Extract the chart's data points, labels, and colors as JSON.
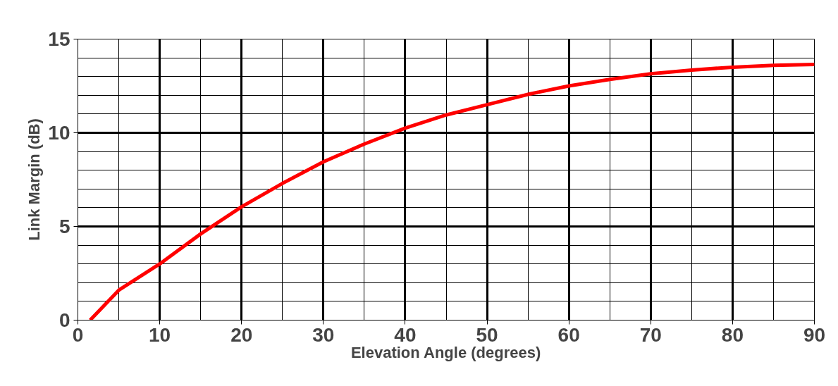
{
  "chart_data": {
    "type": "line",
    "xlabel": "Elevation Angle (degrees)",
    "ylabel": "Link Margin (dB)",
    "x": [
      1.5,
      5,
      10,
      15,
      20,
      25,
      30,
      35,
      40,
      45,
      50,
      55,
      60,
      65,
      70,
      75,
      80,
      85,
      90
    ],
    "series": [
      {
        "color": "#ff0000",
        "values": [
          0,
          1.6,
          3.0,
          4.6,
          6.05,
          7.3,
          8.45,
          9.4,
          10.25,
          10.95,
          11.5,
          12.05,
          12.5,
          12.85,
          13.15,
          13.35,
          13.5,
          13.6,
          13.65
        ]
      }
    ],
    "xlim": [
      0,
      90
    ],
    "ylim": [
      0,
      15
    ],
    "xticks": [
      0,
      10,
      20,
      30,
      40,
      50,
      60,
      70,
      80,
      90
    ],
    "yticks": [
      0,
      5,
      10,
      15
    ],
    "grid": true,
    "marker": "none",
    "line_style": "solid"
  }
}
